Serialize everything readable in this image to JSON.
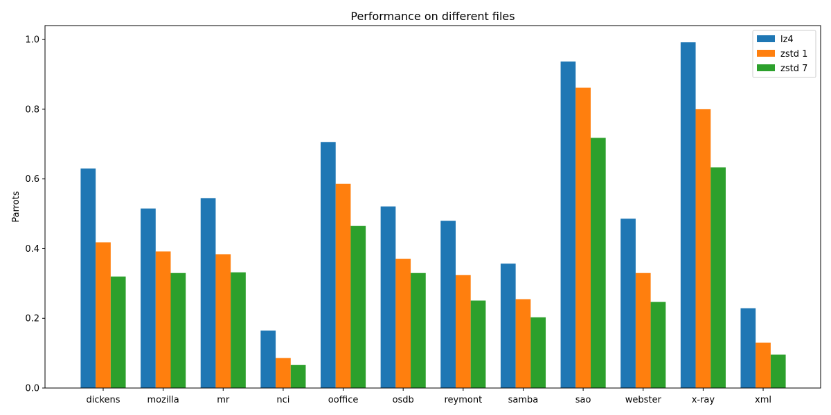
{
  "chart_data": {
    "type": "bar",
    "title": "Performance on different files",
    "xlabel": "",
    "ylabel": "Parrots",
    "ylim": [
      0,
      1.04
    ],
    "yticks": [
      "0.0",
      "0.2",
      "0.4",
      "0.6",
      "0.8",
      "1.0"
    ],
    "categories": [
      "dickens",
      "mozilla",
      "mr",
      "nci",
      "ooffice",
      "osdb",
      "reymont",
      "samba",
      "sao",
      "webster",
      "x-ray",
      "xml"
    ],
    "series": [
      {
        "name": "lz4",
        "color": "#1f77b4",
        "values": [
          0.63,
          0.515,
          0.545,
          0.165,
          0.706,
          0.521,
          0.48,
          0.357,
          0.937,
          0.486,
          0.992,
          0.229
        ]
      },
      {
        "name": "zstd 1",
        "color": "#ff7f0e",
        "values": [
          0.418,
          0.392,
          0.384,
          0.086,
          0.586,
          0.371,
          0.324,
          0.255,
          0.862,
          0.33,
          0.8,
          0.13
        ]
      },
      {
        "name": "zstd 7",
        "color": "#2ca02c",
        "values": [
          0.32,
          0.33,
          0.332,
          0.066,
          0.465,
          0.33,
          0.251,
          0.203,
          0.718,
          0.247,
          0.633,
          0.096
        ]
      }
    ],
    "legend": "top-right",
    "grid": false
  }
}
